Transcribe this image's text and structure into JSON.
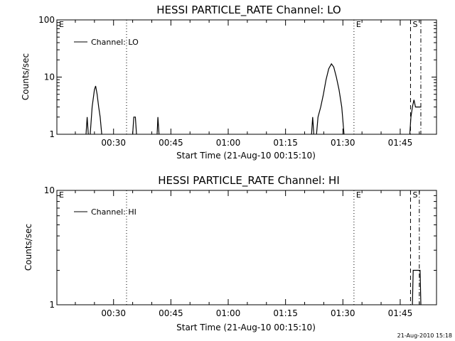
{
  "footer_timestamp": "21-Aug-2010 15:18",
  "colors": {
    "background": "#ffffff",
    "foreground": "#000000"
  },
  "chart_data": [
    {
      "type": "line",
      "title": "HESSI PARTICLE_RATE Channel: LO",
      "xlabel": "Start Time (21-Aug-10 00:15:10)",
      "ylabel": "Counts/sec",
      "yscale": "log",
      "ylim": [
        1,
        100
      ],
      "yticks": [
        {
          "value": 1,
          "label": "1"
        },
        {
          "value": 10,
          "label": "10"
        },
        {
          "value": 100,
          "label": "100"
        }
      ],
      "xlim_minutes": [
        15.17,
        114.5
      ],
      "xticks": [
        {
          "minutes": 30,
          "label": "00:30"
        },
        {
          "minutes": 45,
          "label": "00:45"
        },
        {
          "minutes": 60,
          "label": "01:00"
        },
        {
          "minutes": 75,
          "label": "01:15"
        },
        {
          "minutes": 90,
          "label": "01:30"
        },
        {
          "minutes": 105,
          "label": "01:45"
        }
      ],
      "legend": {
        "label": "Channel: LO",
        "placement": "top-left"
      },
      "markers": [
        {
          "minutes": 15.17,
          "label": "E",
          "style": "none"
        },
        {
          "minutes": 33.4,
          "label": "",
          "style": "dotted"
        },
        {
          "minutes": 92.9,
          "label": "E",
          "style": "dotted"
        },
        {
          "minutes": 107.7,
          "label": "S",
          "style": "dashed"
        },
        {
          "minutes": 110.4,
          "label": "",
          "style": "dashdot"
        }
      ],
      "series": [
        {
          "name": "Channel: LO",
          "segments": [
            [
              [
                22.8,
                1
              ],
              [
                23.1,
                2
              ],
              [
                23.4,
                1
              ]
            ],
            [
              [
                23.9,
                1
              ],
              [
                24.4,
                3
              ],
              [
                25.0,
                6
              ],
              [
                25.3,
                7
              ],
              [
                25.7,
                5
              ],
              [
                26.1,
                3
              ],
              [
                26.5,
                2
              ],
              [
                26.9,
                1
              ]
            ],
            [
              [
                35.0,
                1
              ],
              [
                35.3,
                2
              ],
              [
                35.7,
                2
              ],
              [
                36.0,
                1
              ]
            ],
            [
              [
                41.4,
                1
              ],
              [
                41.6,
                2
              ],
              [
                41.9,
                1
              ]
            ],
            [
              [
                81.8,
                1
              ],
              [
                82.1,
                2
              ],
              [
                82.4,
                1
              ]
            ],
            [
              [
                83.1,
                1
              ],
              [
                83.5,
                2
              ],
              [
                84.2,
                3
              ],
              [
                84.9,
                5
              ],
              [
                85.6,
                9
              ],
              [
                86.3,
                14
              ],
              [
                87.0,
                17
              ],
              [
                87.6,
                15
              ],
              [
                88.3,
                10
              ],
              [
                89.0,
                6
              ],
              [
                89.7,
                3
              ],
              [
                90.3,
                1
              ]
            ],
            [
              [
                107.5,
                1
              ],
              [
                107.8,
                2
              ],
              [
                108.2,
                3
              ],
              [
                108.6,
                4
              ],
              [
                109.0,
                3
              ],
              [
                109.5,
                3
              ],
              [
                110.5,
                3
              ]
            ]
          ]
        }
      ]
    },
    {
      "type": "line",
      "title": "HESSI PARTICLE_RATE Channel: HI",
      "xlabel": "Start Time (21-Aug-10 00:15:10)",
      "ylabel": "Counts/sec",
      "yscale": "log",
      "ylim": [
        1,
        10
      ],
      "yticks": [
        {
          "value": 1,
          "label": "1"
        },
        {
          "value": 10,
          "label": "10"
        }
      ],
      "xlim_minutes": [
        15.17,
        114.5
      ],
      "xticks": [
        {
          "minutes": 30,
          "label": "00:30"
        },
        {
          "minutes": 45,
          "label": "00:45"
        },
        {
          "minutes": 60,
          "label": "01:00"
        },
        {
          "minutes": 75,
          "label": "01:15"
        },
        {
          "minutes": 90,
          "label": "01:30"
        },
        {
          "minutes": 105,
          "label": "01:45"
        }
      ],
      "legend": {
        "label": "Channel: HI",
        "placement": "top-left"
      },
      "markers": [
        {
          "minutes": 15.17,
          "label": "E",
          "style": "none"
        },
        {
          "minutes": 33.4,
          "label": "",
          "style": "dotted"
        },
        {
          "minutes": 92.9,
          "label": "E",
          "style": "dotted"
        },
        {
          "minutes": 107.7,
          "label": "S",
          "style": "dashed"
        },
        {
          "minutes": 110.0,
          "label": "",
          "style": "dashdot"
        }
      ],
      "series": [
        {
          "name": "Channel: HI",
          "segments": [
            [
              [
                108.2,
                1
              ],
              [
                108.4,
                2
              ],
              [
                110.2,
                2
              ],
              [
                110.4,
                1
              ]
            ]
          ]
        }
      ]
    }
  ]
}
